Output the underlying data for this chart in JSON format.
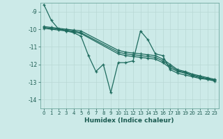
{
  "title": "",
  "xlabel": "Humidex (Indice chaleur)",
  "ylabel": "",
  "bg_color": "#cceae8",
  "grid_color": "#b8d8d5",
  "line_color": "#1e6b5e",
  "xlim": [
    -0.5,
    23.5
  ],
  "ylim": [
    -14.5,
    -8.5
  ],
  "yticks": [
    -14,
    -13,
    -12,
    -11,
    -10,
    -9
  ],
  "xticks": [
    0,
    1,
    2,
    3,
    4,
    5,
    6,
    7,
    8,
    9,
    10,
    11,
    12,
    13,
    14,
    15,
    16,
    17,
    18,
    19,
    20,
    21,
    22,
    23
  ],
  "series": [
    {
      "x": [
        0,
        1,
        2,
        3,
        4,
        5,
        6,
        7,
        8,
        9,
        10,
        11,
        12,
        13,
        14,
        15,
        16,
        17,
        18,
        19,
        20,
        21,
        22,
        23
      ],
      "y": [
        -8.6,
        -9.5,
        -10.0,
        -10.1,
        -10.2,
        -10.4,
        -11.5,
        -12.4,
        -12.0,
        -13.6,
        -11.9,
        -11.9,
        -11.8,
        -10.1,
        -10.6,
        -11.4,
        -11.5,
        -12.3,
        -12.5,
        -12.6,
        -12.7,
        -12.8,
        -12.85,
        -12.9
      ]
    },
    {
      "x": [
        0,
        1,
        2,
        3,
        4,
        5,
        10,
        11,
        12,
        13,
        14,
        15,
        16,
        17,
        18,
        19,
        20,
        21,
        22,
        23
      ],
      "y": [
        -9.85,
        -9.9,
        -9.95,
        -10.0,
        -10.05,
        -10.1,
        -11.2,
        -11.3,
        -11.35,
        -11.4,
        -11.45,
        -11.5,
        -11.7,
        -12.0,
        -12.3,
        -12.4,
        -12.55,
        -12.65,
        -12.75,
        -12.85
      ]
    },
    {
      "x": [
        0,
        1,
        2,
        3,
        4,
        5,
        10,
        11,
        12,
        13,
        14,
        15,
        16,
        17,
        18,
        19,
        20,
        21,
        22,
        23
      ],
      "y": [
        -9.9,
        -9.95,
        -10.0,
        -10.05,
        -10.1,
        -10.2,
        -11.3,
        -11.4,
        -11.45,
        -11.5,
        -11.55,
        -11.6,
        -11.8,
        -12.1,
        -12.35,
        -12.45,
        -12.6,
        -12.7,
        -12.8,
        -12.9
      ]
    },
    {
      "x": [
        0,
        1,
        2,
        3,
        4,
        5,
        10,
        11,
        12,
        13,
        14,
        15,
        16,
        17,
        18,
        19,
        20,
        21,
        22,
        23
      ],
      "y": [
        -9.95,
        -10.0,
        -10.05,
        -10.1,
        -10.15,
        -10.25,
        -11.4,
        -11.5,
        -11.55,
        -11.6,
        -11.65,
        -11.7,
        -11.9,
        -12.2,
        -12.4,
        -12.5,
        -12.65,
        -12.75,
        -12.85,
        -12.95
      ]
    }
  ]
}
